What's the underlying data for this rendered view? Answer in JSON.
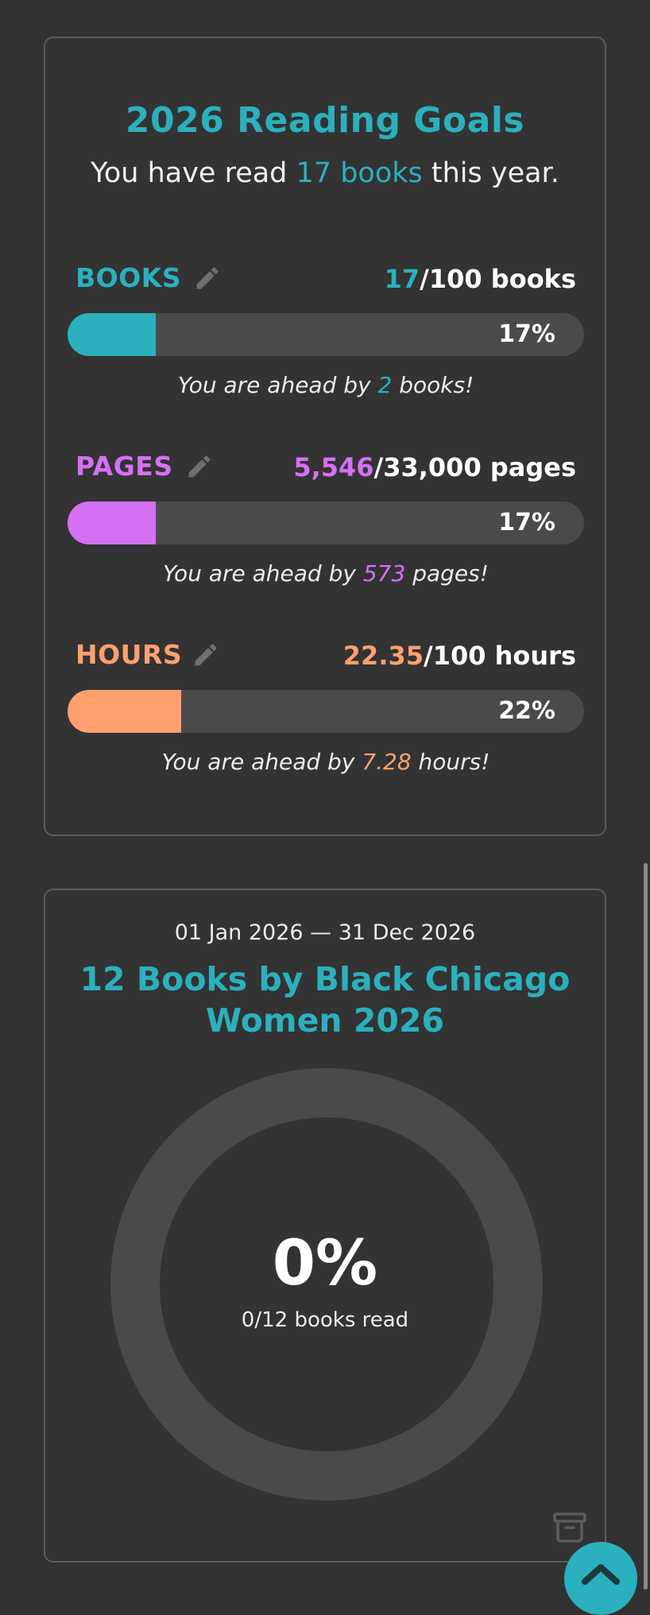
{
  "reading_goals": {
    "title": "2026 Reading Goals",
    "subtitle_prefix": "You have read ",
    "subtitle_highlight": "17 books",
    "subtitle_suffix": " this year.",
    "goals": [
      {
        "label": "BOOKS",
        "current": "17",
        "target_text": "/100 books",
        "progress_percent": 17,
        "percent_label": "17%",
        "status_prefix": "You are ahead by ",
        "status_value": "2",
        "status_suffix": " books!",
        "color": "#2bb0bd"
      },
      {
        "label": "PAGES",
        "current": "5,546",
        "target_text": "/33,000 pages",
        "progress_percent": 17,
        "percent_label": "17%",
        "status_prefix": "You are ahead by ",
        "status_value": "573",
        "status_suffix": " pages!",
        "color": "#d670f5"
      },
      {
        "label": "HOURS",
        "current": "22.35",
        "target_text": "/100 hours",
        "progress_percent": 22,
        "percent_label": "22%",
        "status_prefix": "You are ahead by ",
        "status_value": "7.28",
        "status_suffix": " hours!",
        "color": "#ffa06e"
      }
    ]
  },
  "challenge": {
    "date_range": "01 Jan 2026 — 31 Dec 2026",
    "title": "12 Books by Black Chicago Women 2026",
    "progress_percent_label": "0%",
    "progress_fraction": 0,
    "books_read_text": "0/12 books read"
  },
  "icons": {
    "edit": "pencil-icon",
    "archive": "archive-icon",
    "scroll_top": "chevron-up-icon"
  },
  "colors": {
    "background": "#323232",
    "accent": "#2bb0bd",
    "track": "#4a4a4a"
  }
}
